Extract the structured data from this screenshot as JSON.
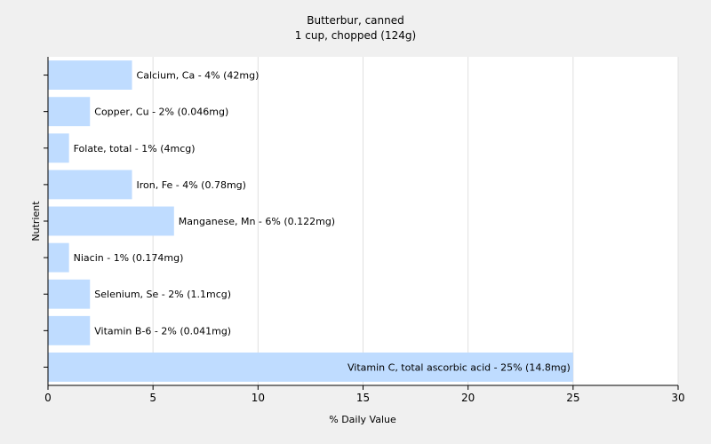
{
  "chart_data": {
    "type": "bar",
    "orientation": "horizontal",
    "title": "Butterbur, canned",
    "subtitle": "1 cup, chopped (124g)",
    "xlabel": "% Daily Value",
    "ylabel": "Nutrient",
    "xlim": [
      0,
      30
    ],
    "xticks": [
      0,
      5,
      10,
      15,
      20,
      25,
      30
    ],
    "grid": true,
    "bar_color": "#bfdcff",
    "categories": [
      "Calcium, Ca",
      "Copper, Cu",
      "Folate, total",
      "Iron, Fe",
      "Manganese, Mn",
      "Niacin",
      "Selenium, Se",
      "Vitamin B-6",
      "Vitamin C, total ascorbic acid"
    ],
    "values": [
      4,
      2,
      1,
      4,
      6,
      1,
      2,
      2,
      25
    ],
    "labels": [
      "Calcium, Ca - 4% (42mg)",
      "Copper, Cu - 2% (0.046mg)",
      "Folate, total - 1% (4mcg)",
      "Iron, Fe - 4% (0.78mg)",
      "Manganese, Mn - 6% (0.122mg)",
      "Niacin - 1% (0.174mg)",
      "Selenium, Se - 2% (1.1mcg)",
      "Vitamin B-6 - 2% (0.041mg)",
      "Vitamin C, total ascorbic acid - 25% (14.8mg)"
    ]
  }
}
